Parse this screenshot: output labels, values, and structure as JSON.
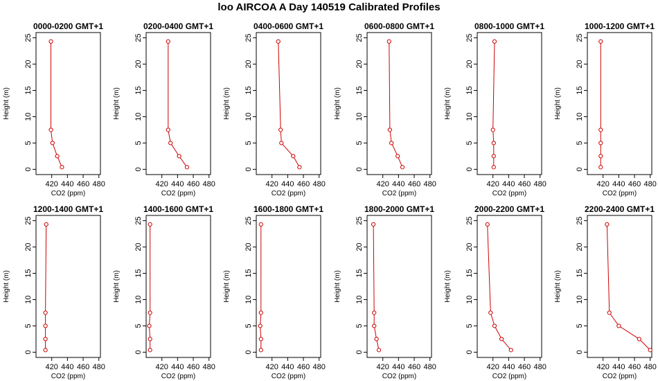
{
  "title": "loo AIRCOA A  Day 140519  Calibrated Profiles",
  "style": {
    "line_color": "#cc0000",
    "point_color": "#cc0000",
    "axis_color": "#000000"
  },
  "chart_data": [
    {
      "type": "line",
      "title": "0000-0200 GMT+1",
      "xlabel": "CO2 (ppm)",
      "ylabel": "Height (m)",
      "xlim": [
        400,
        482
      ],
      "ylim": [
        0,
        25
      ],
      "xticks": [
        420,
        440,
        460,
        480
      ],
      "yticks": [
        0,
        5,
        10,
        15,
        20,
        25
      ],
      "x": [
        433,
        427,
        421,
        419,
        419
      ],
      "y": [
        0.4,
        2.5,
        5.0,
        7.5,
        24.3
      ]
    },
    {
      "type": "line",
      "title": "0200-0400 GMT+1",
      "xlabel": "CO2 (ppm)",
      "ylabel": "Height (m)",
      "xlim": [
        400,
        482
      ],
      "ylim": [
        0,
        25
      ],
      "xticks": [
        420,
        440,
        460,
        480
      ],
      "yticks": [
        0,
        5,
        10,
        15,
        20,
        25
      ],
      "x": [
        452,
        442,
        431,
        428,
        428
      ],
      "y": [
        0.4,
        2.5,
        5.0,
        7.5,
        24.3
      ]
    },
    {
      "type": "line",
      "title": "0400-0600 GMT+1",
      "xlabel": "CO2 (ppm)",
      "ylabel": "Height (m)",
      "xlim": [
        400,
        482
      ],
      "ylim": [
        0,
        25
      ],
      "xticks": [
        420,
        440,
        460,
        480
      ],
      "yticks": [
        0,
        5,
        10,
        15,
        20,
        25
      ],
      "x": [
        455,
        447,
        432,
        431,
        428
      ],
      "y": [
        0.4,
        2.5,
        5.0,
        7.5,
        24.3
      ]
    },
    {
      "type": "line",
      "title": "0600-0800 GMT+1",
      "xlabel": "CO2 (ppm)",
      "ylabel": "Height (m)",
      "xlim": [
        400,
        482
      ],
      "ylim": [
        0,
        25
      ],
      "xticks": [
        420,
        440,
        460,
        480
      ],
      "yticks": [
        0,
        5,
        10,
        15,
        20,
        25
      ],
      "x": [
        445,
        439,
        431,
        429,
        428
      ],
      "y": [
        0.4,
        2.5,
        5.0,
        7.5,
        24.3
      ]
    },
    {
      "type": "line",
      "title": "0800-1000 GMT+1",
      "xlabel": "CO2 (ppm)",
      "ylabel": "Height (m)",
      "xlim": [
        400,
        482
      ],
      "ylim": [
        0,
        25
      ],
      "xticks": [
        420,
        440,
        460,
        480
      ],
      "yticks": [
        0,
        5,
        10,
        15,
        20,
        25
      ],
      "x": [
        421,
        421,
        421,
        420,
        422
      ],
      "y": [
        0.4,
        2.5,
        5.0,
        7.5,
        24.3
      ]
    },
    {
      "type": "line",
      "title": "1000-1200 GMT+1",
      "xlabel": "CO2 (ppm)",
      "ylabel": "Height (m)",
      "xlim": [
        400,
        482
      ],
      "ylim": [
        0,
        25
      ],
      "xticks": [
        420,
        440,
        460,
        480
      ],
      "yticks": [
        0,
        5,
        10,
        15,
        20,
        25
      ],
      "x": [
        417,
        417,
        417,
        417,
        417
      ],
      "y": [
        0.4,
        2.5,
        5.0,
        7.5,
        24.3
      ]
    },
    {
      "type": "line",
      "title": "1200-1400 GMT+1",
      "xlabel": "CO2 (ppm)",
      "ylabel": "Height (m)",
      "xlim": [
        400,
        482
      ],
      "ylim": [
        0,
        25
      ],
      "xticks": [
        420,
        440,
        460,
        480
      ],
      "yticks": [
        0,
        5,
        10,
        15,
        20,
        25
      ],
      "x": [
        412,
        412,
        412,
        412,
        413
      ],
      "y": [
        0.4,
        2.5,
        5.0,
        7.5,
        24.3
      ]
    },
    {
      "type": "line",
      "title": "1400-1600 GMT+1",
      "xlabel": "CO2 (ppm)",
      "ylabel": "Height (m)",
      "xlim": [
        400,
        482
      ],
      "ylim": [
        0,
        25
      ],
      "xticks": [
        420,
        440,
        460,
        480
      ],
      "yticks": [
        0,
        5,
        10,
        15,
        20,
        25
      ],
      "x": [
        405,
        405,
        404,
        405,
        405
      ],
      "y": [
        0.4,
        2.5,
        5.0,
        7.5,
        24.3
      ]
    },
    {
      "type": "line",
      "title": "1600-1800 GMT+1",
      "xlabel": "CO2 (ppm)",
      "ylabel": "Height (m)",
      "xlim": [
        400,
        482
      ],
      "ylim": [
        0,
        25
      ],
      "xticks": [
        420,
        440,
        460,
        480
      ],
      "yticks": [
        0,
        5,
        10,
        15,
        20,
        25
      ],
      "x": [
        406,
        406,
        405,
        406,
        406
      ],
      "y": [
        0.4,
        2.5,
        5.0,
        7.5,
        24.3
      ]
    },
    {
      "type": "line",
      "title": "1800-2000 GMT+1",
      "xlabel": "CO2 (ppm)",
      "ylabel": "Height (m)",
      "xlim": [
        400,
        482
      ],
      "ylim": [
        0,
        25
      ],
      "xticks": [
        420,
        440,
        460,
        480
      ],
      "yticks": [
        0,
        5,
        10,
        15,
        20,
        25
      ],
      "x": [
        415,
        412,
        409,
        409,
        408
      ],
      "y": [
        0.4,
        2.5,
        5.0,
        7.5,
        24.3
      ]
    },
    {
      "type": "line",
      "title": "2000-2200 GMT+1",
      "xlabel": "CO2 (ppm)",
      "ylabel": "Height (m)",
      "xlim": [
        400,
        482
      ],
      "ylim": [
        0,
        25
      ],
      "xticks": [
        420,
        440,
        460,
        480
      ],
      "yticks": [
        0,
        5,
        10,
        15,
        20,
        25
      ],
      "x": [
        443,
        431,
        422,
        417,
        413
      ],
      "y": [
        0.4,
        2.5,
        5.0,
        7.5,
        24.3
      ]
    },
    {
      "type": "line",
      "title": "2200-2400 GMT+1",
      "xlabel": "CO2 (ppm)",
      "ylabel": "Height (m)",
      "xlim": [
        400,
        482
      ],
      "ylim": [
        0,
        25
      ],
      "xticks": [
        420,
        440,
        460,
        480
      ],
      "yticks": [
        0,
        5,
        10,
        15,
        20,
        25
      ],
      "x": [
        480,
        466,
        440,
        428,
        425
      ],
      "y": [
        0.4,
        2.5,
        5.0,
        7.5,
        24.3
      ]
    }
  ]
}
